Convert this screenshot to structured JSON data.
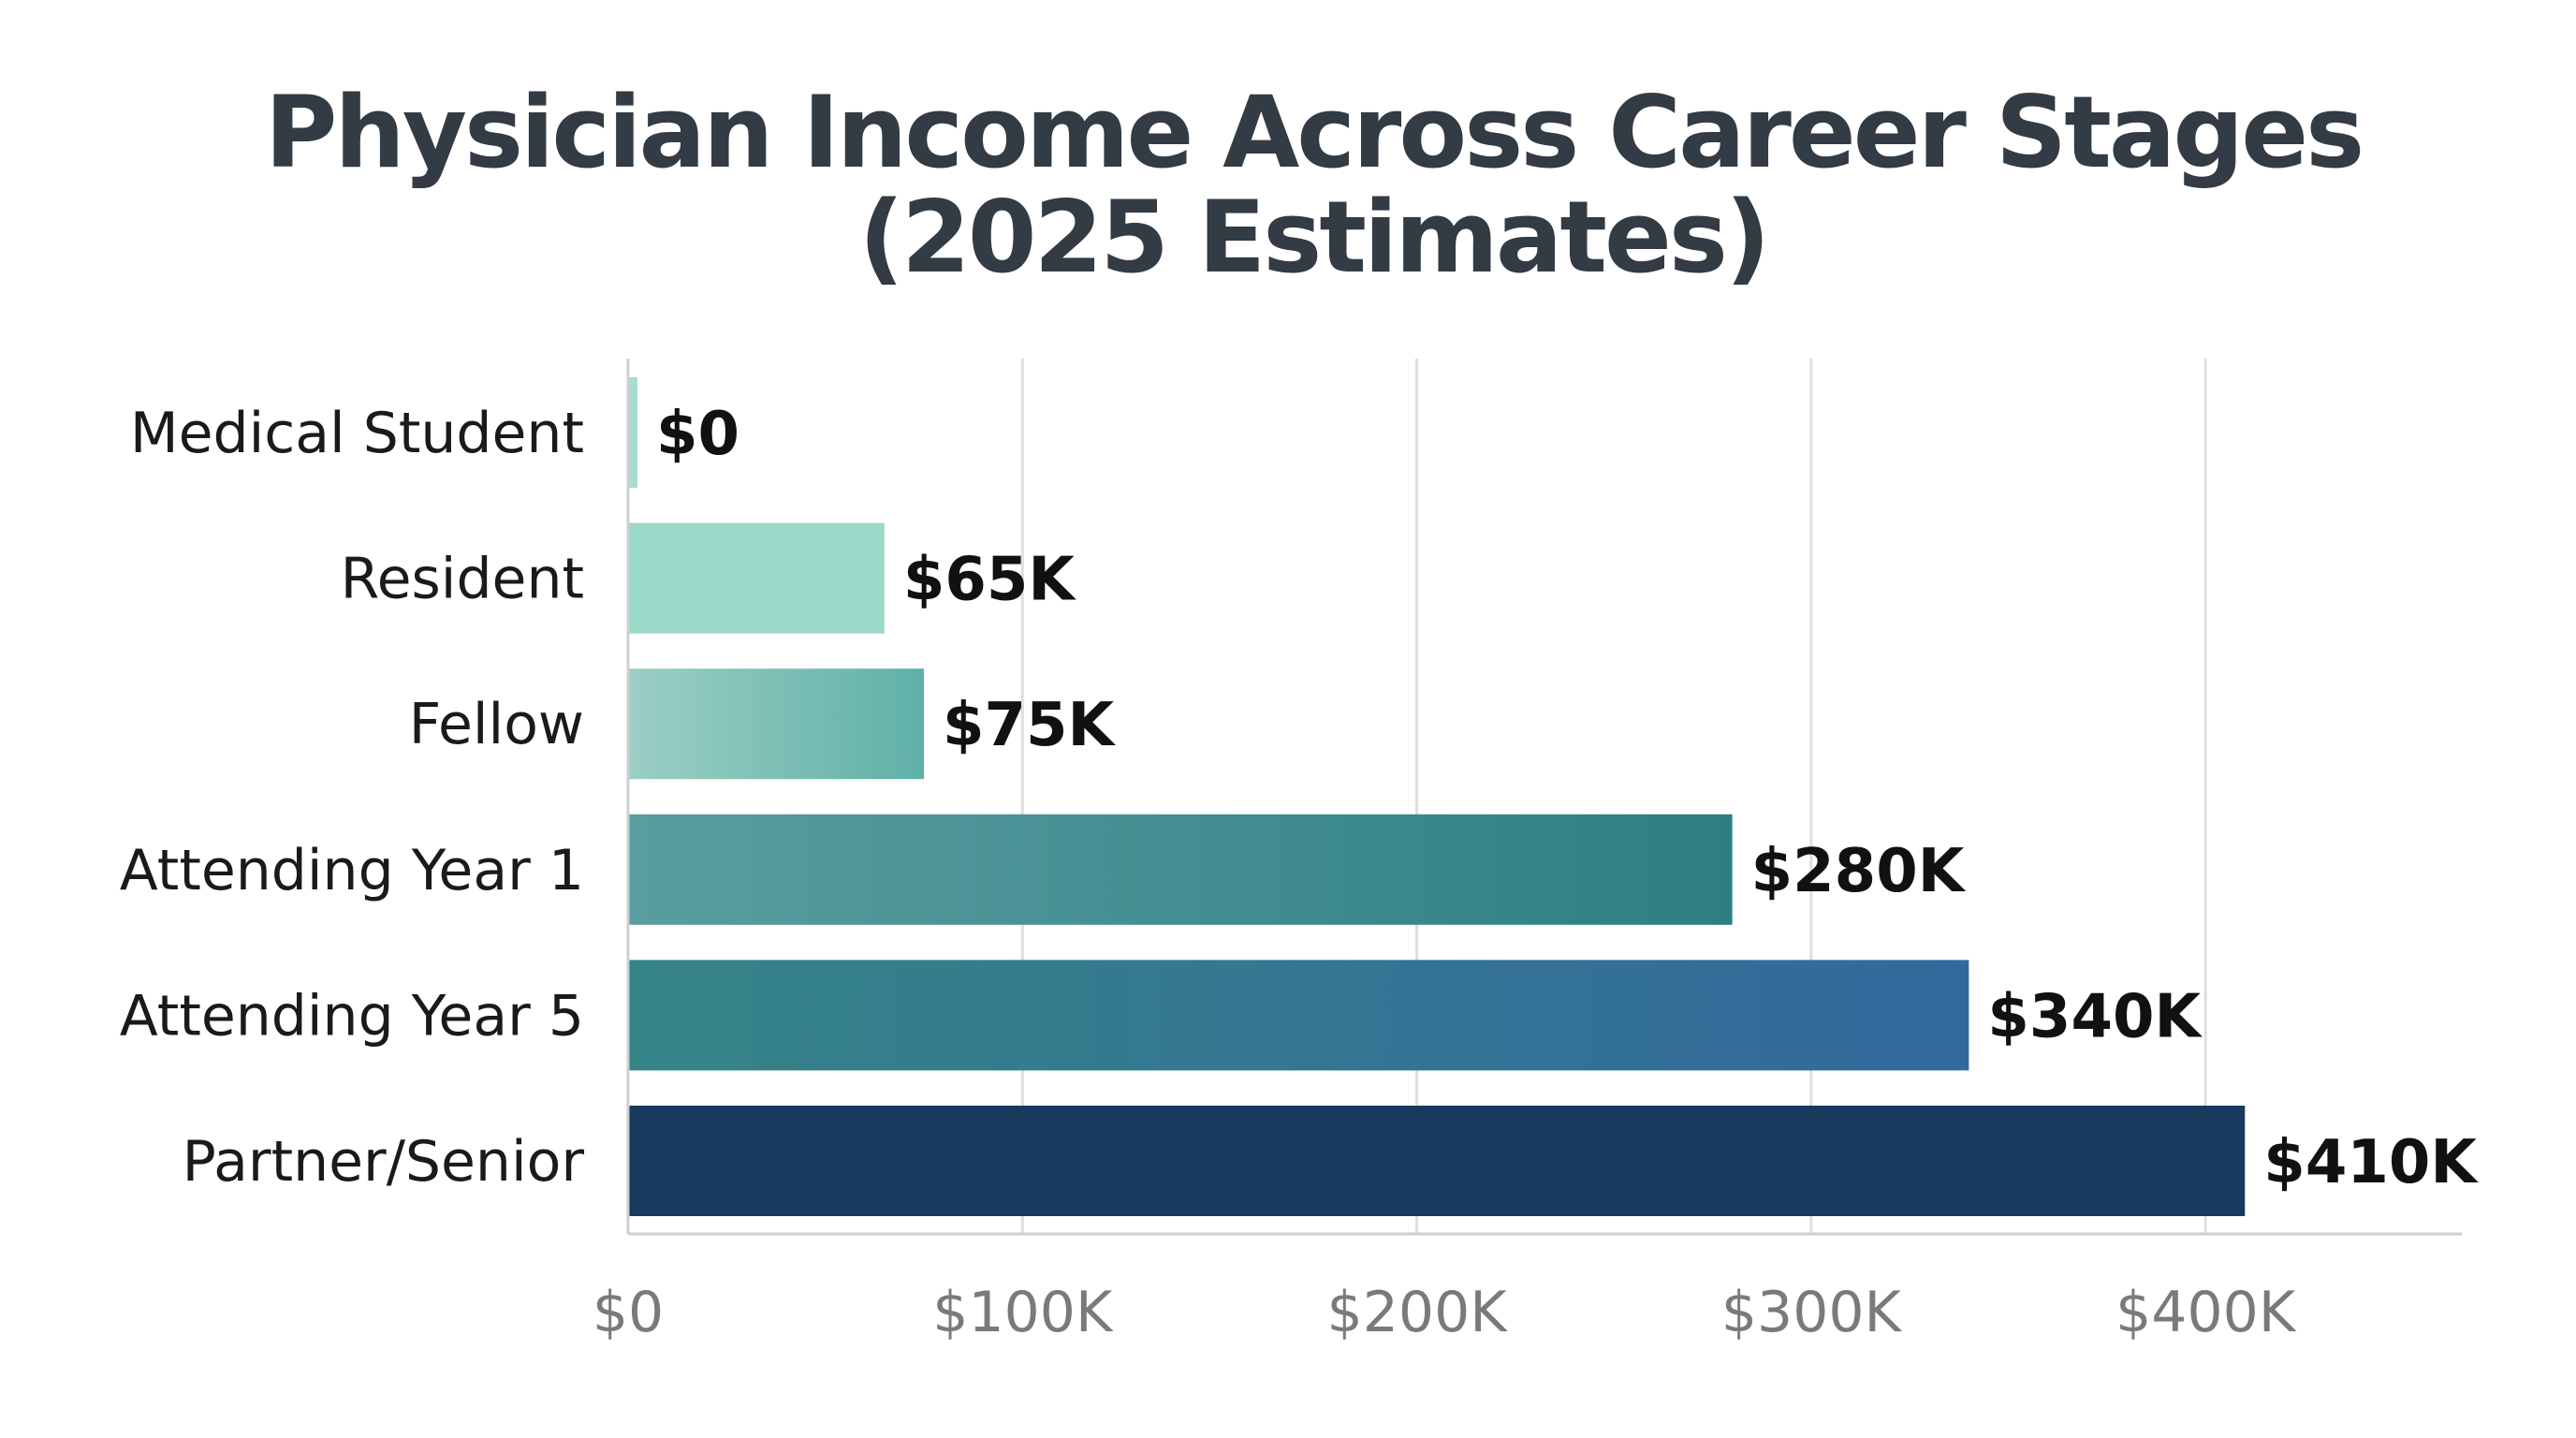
{
  "chart_data": {
    "type": "bar",
    "orientation": "horizontal",
    "title_lines": [
      "Physician Income Across Career Stages",
      "(2025 Estimates)"
    ],
    "categories": [
      "Medical Student",
      "Resident",
      "Fellow",
      "Attending Year 1",
      "Attending Year 5",
      "Partner/Senior"
    ],
    "values": [
      0,
      65000,
      75000,
      280000,
      340000,
      410000
    ],
    "value_labels": [
      "$0",
      "$65K",
      "$75K",
      "$280K",
      "$340K",
      "$410K"
    ],
    "bar_colors": [
      [
        "#a7ddd0",
        "#a7ddd0"
      ],
      [
        "#9ad8c8",
        "#9ad8c8"
      ],
      [
        "#9bcfc4",
        "#5fb0a7"
      ],
      [
        "#5a9da0",
        "#2d7f82"
      ],
      [
        "#358487",
        "#32699d"
      ],
      [
        "#173a5e",
        "#173a5e"
      ]
    ],
    "x_ticks": [
      0,
      100000,
      200000,
      300000,
      400000
    ],
    "x_tick_labels": [
      "$0",
      "$100K",
      "$200K",
      "$300K",
      "$400K"
    ],
    "xlim": [
      0,
      465000
    ],
    "grid": true,
    "legend": "none",
    "xlabel": "",
    "ylabel": ""
  }
}
